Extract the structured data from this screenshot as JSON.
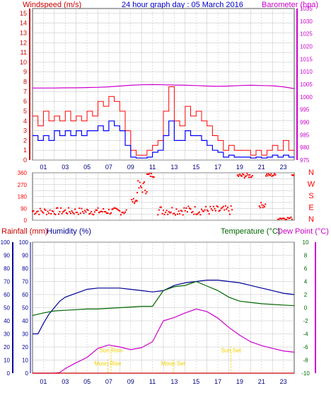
{
  "header": {
    "title": "24 hour graph day : 05 March 2016",
    "left_label": "Windspeed (m/s)",
    "right_label": "Barometer (hpa)"
  },
  "colors": {
    "frame": "#555555",
    "grid": "#bfbfbf",
    "wind_axis": "#cc0000",
    "gust": "#ff0000",
    "average": "#0000ff",
    "barometer": "#cc00cc",
    "direction": "#ff0000",
    "rainfall": "#cc0000",
    "humidity": "#000099",
    "temperature": "#006600",
    "dewpoint": "#cc00cc",
    "sun_moon": "#f0d000"
  },
  "x_tick_labels": [
    "01",
    "03",
    "05",
    "07",
    "09",
    "11",
    "13",
    "15",
    "17",
    "19",
    "21",
    "23"
  ],
  "chart_data": [
    {
      "type": "line",
      "title": "24 hour graph day : 05 March 2016",
      "ylabel": "Windspeed (m/s)",
      "y2label": "Barometer (hpa)",
      "ylim": [
        0,
        15.5
      ],
      "y2lim": [
        975,
        1035
      ],
      "yticks": [
        0,
        1,
        2,
        3,
        4,
        5,
        6,
        7,
        8,
        9,
        10,
        11,
        12,
        13,
        14,
        15
      ],
      "y2ticks": [
        975,
        980,
        985,
        990,
        995,
        1000,
        1005,
        1010,
        1015,
        1020,
        1025,
        1030,
        1035
      ],
      "grid": true,
      "series": [
        {
          "name": "Gust",
          "x": [
            0,
            0.5,
            1,
            1.5,
            2,
            2.5,
            3,
            3.5,
            4,
            4.5,
            5,
            5.5,
            6,
            6.5,
            7,
            7.5,
            8,
            8.5,
            9,
            9.5,
            10,
            10.5,
            11,
            11.5,
            12,
            12.5,
            13,
            13.5,
            14,
            14.5,
            15,
            15.5,
            16,
            16.5,
            17,
            17.5,
            18,
            18.5,
            19,
            19.5,
            20,
            20.5,
            21,
            21.5,
            22,
            22.5,
            23,
            23.5,
            24
          ],
          "values": [
            4.5,
            3.5,
            5,
            4,
            4.5,
            4,
            5,
            4,
            4.5,
            4,
            5,
            4.5,
            6,
            5.5,
            6.5,
            6,
            5,
            3,
            1,
            0.5,
            0.5,
            1,
            1.5,
            2,
            5,
            7.5,
            4,
            3.5,
            5.5,
            4.5,
            5,
            4,
            3.5,
            2.5,
            2,
            1,
            1.5,
            1,
            1,
            1,
            0.5,
            1,
            0.5,
            1,
            1.5,
            1,
            2,
            1,
            1
          ]
        },
        {
          "name": "Average",
          "x": [
            0,
            0.5,
            1,
            1.5,
            2,
            2.5,
            3,
            3.5,
            4,
            4.5,
            5,
            5.5,
            6,
            6.5,
            7,
            7.5,
            8,
            8.5,
            9,
            9.5,
            10,
            10.5,
            11,
            11.5,
            12,
            12.5,
            13,
            13.5,
            14,
            14.5,
            15,
            15.5,
            16,
            16.5,
            17,
            17.5,
            18,
            18.5,
            19,
            19.5,
            20,
            20.5,
            21,
            21.5,
            22,
            22.5,
            23,
            23.5,
            24
          ],
          "values": [
            2.5,
            2,
            2.5,
            2,
            3,
            2.5,
            3,
            2.5,
            3,
            2.5,
            3,
            3,
            3.5,
            3,
            4,
            3.5,
            3,
            1.5,
            0.3,
            0.2,
            0.2,
            0.3,
            0.8,
            1,
            2.5,
            4,
            2,
            2,
            3,
            2.5,
            2.5,
            2,
            1.5,
            1,
            0.8,
            0.3,
            0.5,
            0.3,
            0.3,
            0.3,
            0.2,
            0.3,
            0.2,
            0.3,
            0.5,
            0.3,
            0.5,
            0.3,
            0.3
          ]
        },
        {
          "name": "Barometer",
          "axis": "right",
          "x": [
            0,
            1,
            2,
            3,
            4,
            5,
            6,
            7,
            8,
            9,
            10,
            11,
            12,
            13,
            14,
            15,
            16,
            17,
            18,
            19,
            20,
            21,
            22,
            23,
            24
          ],
          "values": [
            1003.5,
            1003.5,
            1003.5,
            1003.6,
            1003.6,
            1003.7,
            1003.8,
            1004,
            1004.3,
            1004.6,
            1004.8,
            1004.9,
            1004.8,
            1004.7,
            1004.6,
            1004.5,
            1004.3,
            1004.2,
            1004.3,
            1004.5,
            1004.6,
            1004.5,
            1004.4,
            1004,
            1003.3
          ]
        }
      ]
    },
    {
      "type": "scatter",
      "ylabel_letters": [
        "N",
        "W",
        "S",
        "E",
        "N"
      ],
      "ylim": [
        0,
        360
      ],
      "yticks": [
        0,
        45,
        90,
        135,
        180,
        225,
        270,
        315,
        360
      ],
      "series": [
        {
          "name": "Wind direction",
          "segments": [
            {
              "x0": 0,
              "x1": 8.6,
              "step": 0.1,
              "y": [
                40,
                95
              ]
            },
            {
              "x0": 9.1,
              "x1": 9.6,
              "step": 0.08,
              "y": [
                130,
                165
              ]
            },
            {
              "x0": 9.6,
              "x1": 10.5,
              "step": 0.08,
              "y": [
                200,
                300
              ]
            },
            {
              "x0": 10.5,
              "x1": 11.2,
              "step": 0.08,
              "y": [
                325,
                360
              ]
            },
            {
              "x0": 11.5,
              "x1": 18.3,
              "step": 0.1,
              "y": [
                40,
                110
              ]
            },
            {
              "x0": 18.8,
              "x1": 20.2,
              "step": 0.08,
              "y": [
                320,
                355
              ]
            },
            {
              "x0": 20.8,
              "x1": 21.4,
              "step": 0.08,
              "y": [
                95,
                135
              ]
            },
            {
              "x0": 21.4,
              "x1": 22.3,
              "step": 0.08,
              "y": [
                330,
                355
              ]
            },
            {
              "x0": 22.5,
              "x1": 23.8,
              "step": 0.1,
              "y": [
                5,
                25
              ]
            },
            {
              "x0": 23.8,
              "x1": 24,
              "step": 0.08,
              "y": [
                335,
                355
              ]
            }
          ]
        }
      ]
    },
    {
      "type": "line",
      "labels": {
        "rainfall": "Rainfall (mm)",
        "humidity": "Humidity (%)",
        "temperature": "Temperature (°C)",
        "dewpoint": "Dew Point (°C)"
      },
      "ylim_rain": [
        0,
        100
      ],
      "ylim_humidity": [
        0,
        100
      ],
      "ylim_temp": [
        -10,
        10
      ],
      "yticks_rain": [
        0,
        10,
        20,
        30,
        40,
        50,
        60,
        70,
        80,
        90,
        100
      ],
      "yticks_temp": [
        -10,
        -8,
        -6,
        -4,
        -2,
        0,
        2,
        4,
        6,
        8,
        10
      ],
      "grid": true,
      "series": [
        {
          "name": "Humidity (%)",
          "axis": "humidity",
          "x": [
            0,
            0.5,
            1,
            1.5,
            2,
            2.5,
            3,
            4,
            5,
            6,
            7,
            8,
            9,
            10,
            11,
            12,
            13,
            14,
            15,
            16,
            17,
            18,
            19,
            20,
            21,
            22,
            23,
            24
          ],
          "values": [
            30,
            30,
            38,
            45,
            50,
            55,
            58,
            61,
            64,
            65,
            65,
            65,
            64,
            63,
            62,
            63,
            67,
            69,
            70,
            71,
            71,
            70,
            69,
            67,
            65,
            63,
            61,
            60
          ]
        },
        {
          "name": "Temperature (°C)",
          "axis": "temp",
          "x": [
            0,
            1,
            2,
            3,
            4,
            5,
            6,
            7,
            8,
            9,
            10,
            11,
            12,
            13,
            14,
            15,
            16,
            17,
            18,
            19,
            20,
            21,
            22,
            23,
            24
          ],
          "values": [
            -1.2,
            -0.8,
            -0.5,
            -0.4,
            -0.3,
            -0.2,
            -0.2,
            -0.1,
            0,
            0.1,
            0.2,
            0.2,
            2.6,
            3.2,
            3.4,
            4,
            3.3,
            2.6,
            1.6,
            1.0,
            0.8,
            0.6,
            0.5,
            0.4,
            0.3
          ]
        },
        {
          "name": "Dew Point (°C)",
          "axis": "temp",
          "x": [
            0,
            1,
            2,
            2.5,
            3,
            4,
            5,
            6,
            7,
            8,
            9,
            10,
            11,
            12,
            13,
            14,
            15,
            16,
            17,
            18,
            19,
            20,
            21,
            22,
            23,
            24
          ],
          "values": [
            -10,
            -10,
            -10,
            -9.9,
            -9.3,
            -8.4,
            -7.6,
            -6.2,
            -5.7,
            -6.0,
            -6.4,
            -6.1,
            -5.2,
            -2.0,
            -1.5,
            -0.8,
            -0.2,
            -0.6,
            -1.6,
            -3.0,
            -4.2,
            -5.2,
            -5.8,
            -6.2,
            -6.6,
            -6.8
          ]
        },
        {
          "name": "Rainfall (mm)",
          "axis": "rain",
          "x": [
            0,
            24
          ],
          "values": [
            0,
            0
          ]
        }
      ],
      "annotations": [
        {
          "text": "Sun Rise",
          "x": 7.2,
          "level": 16
        },
        {
          "text": "Sun Set",
          "x": 18.2,
          "level": 16
        },
        {
          "text": "Moon Rise",
          "x": 6.9,
          "level": 6
        },
        {
          "text": "Moon Set",
          "x": 12.9,
          "level": 6
        }
      ]
    }
  ]
}
